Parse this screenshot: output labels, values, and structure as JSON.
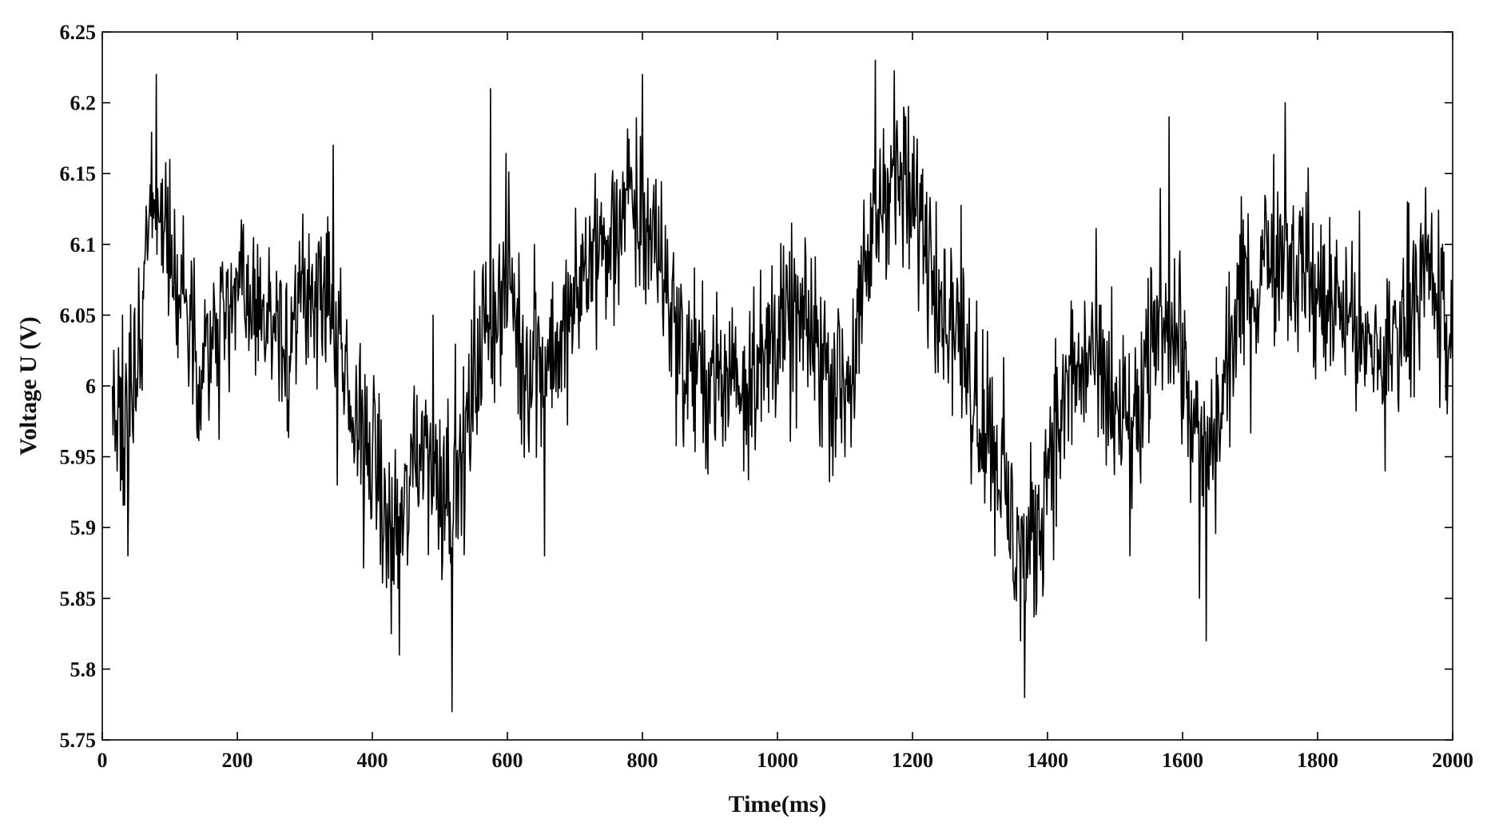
{
  "chart_data": {
    "type": "line",
    "title": "",
    "xlabel": "Time(ms)",
    "ylabel": "Voltage U (V)",
    "xlim": [
      0,
      2000
    ],
    "ylim": [
      5.75,
      6.25
    ],
    "x_ticks": [
      0,
      200,
      400,
      600,
      800,
      1000,
      1200,
      1400,
      1600,
      1800,
      2000
    ],
    "x_tick_labels": [
      "0",
      "200",
      "400",
      "600",
      "800",
      "1000",
      "1200",
      "1400",
      "1600",
      "1800",
      "2000"
    ],
    "y_ticks": [
      5.75,
      5.8,
      5.85,
      5.9,
      5.95,
      6.0,
      6.05,
      6.1,
      6.15,
      6.2,
      6.25
    ],
    "y_tick_labels": [
      "5.75",
      "5.8",
      "5.85",
      "5.9",
      "5.95",
      "6",
      "6.05",
      "6.1",
      "6.15",
      "6.2",
      "6.25"
    ],
    "grid": false,
    "legend": "none",
    "line_color": "#000000",
    "series": [
      {
        "x": [
          15,
          22,
          30,
          38,
          46,
          55,
          64,
          72,
          80,
          90,
          100,
          112,
          125,
          140,
          155,
          170,
          185,
          200,
          215,
          230,
          245,
          260,
          275,
          290,
          305,
          320,
          335,
          342,
          348,
          358,
          370,
          382,
          395,
          408,
          420,
          432,
          440,
          450,
          462,
          475,
          490,
          505,
          518,
          530,
          545,
          560,
          575,
          590,
          605,
          620,
          640,
          655,
          670,
          690,
          710,
          730,
          750,
          770,
          790,
          800,
          815,
          830,
          845,
          860,
          875,
          890,
          905,
          920,
          935,
          950,
          965,
          980,
          995,
          1010,
          1025,
          1040,
          1055,
          1070,
          1085,
          1100,
          1110,
          1125,
          1135,
          1145,
          1160,
          1175,
          1190,
          1205,
          1220,
          1235,
          1250,
          1265,
          1280,
          1295,
          1310,
          1322,
          1335,
          1348,
          1360,
          1366,
          1375,
          1390,
          1405,
          1420,
          1435,
          1450,
          1465,
          1480,
          1495,
          1510,
          1522,
          1535,
          1550,
          1565,
          1580,
          1595,
          1610,
          1625,
          1635,
          1650,
          1665,
          1680,
          1695,
          1710,
          1725,
          1740,
          1752,
          1765,
          1780,
          1795,
          1810,
          1825,
          1840,
          1855,
          1870,
          1885,
          1900,
          1915,
          1930,
          1945,
          1960,
          1970,
          1978,
          1985,
          1990,
          1995,
          2000
        ],
        "y": [
          6.0,
          5.94,
          6.05,
          5.88,
          5.96,
          6.04,
          6.1,
          6.12,
          6.22,
          6.08,
          6.16,
          6.02,
          6.06,
          5.97,
          6.05,
          6.0,
          6.07,
          6.08,
          6.05,
          6.1,
          6.03,
          6.06,
          5.99,
          6.08,
          6.02,
          6.1,
          6.05,
          6.17,
          5.93,
          5.98,
          5.96,
          6.03,
          5.92,
          5.98,
          5.9,
          5.86,
          5.81,
          5.94,
          6.0,
          5.92,
          6.05,
          5.95,
          5.77,
          5.98,
          5.94,
          6.02,
          6.21,
          6.0,
          6.07,
          6.03,
          6.1,
          5.88,
          6.02,
          6.08,
          6.05,
          6.15,
          6.08,
          6.12,
          6.07,
          6.22,
          6.12,
          6.05,
          6.08,
          5.97,
          6.03,
          5.96,
          6.05,
          5.99,
          6.03,
          5.94,
          6.07,
          5.99,
          6.05,
          6.02,
          6.09,
          6.04,
          5.99,
          6.06,
          6.02,
          5.95,
          6.0,
          6.03,
          6.06,
          6.23,
          6.15,
          6.1,
          6.19,
          6.12,
          6.08,
          6.13,
          6.03,
          6.05,
          5.98,
          6.06,
          5.96,
          5.88,
          6.02,
          5.93,
          5.82,
          5.78,
          5.96,
          5.87,
          5.96,
          5.99,
          6.06,
          5.98,
          6.04,
          5.97,
          6.07,
          5.95,
          5.88,
          6.0,
          5.96,
          6.05,
          6.19,
          6.08,
          5.98,
          5.85,
          5.82,
          6.02,
          6.07,
          6.03,
          6.09,
          6.05,
          6.1,
          6.07,
          6.2,
          6.06,
          6.08,
          6.02,
          6.1,
          6.06,
          6.03,
          6.08,
          6.0,
          6.05,
          5.94,
          6.06,
          6.03,
          6.1,
          6.14,
          6.05,
          6.02,
          6.1,
          5.99,
          6.03,
          6.02
        ]
      }
    ]
  }
}
